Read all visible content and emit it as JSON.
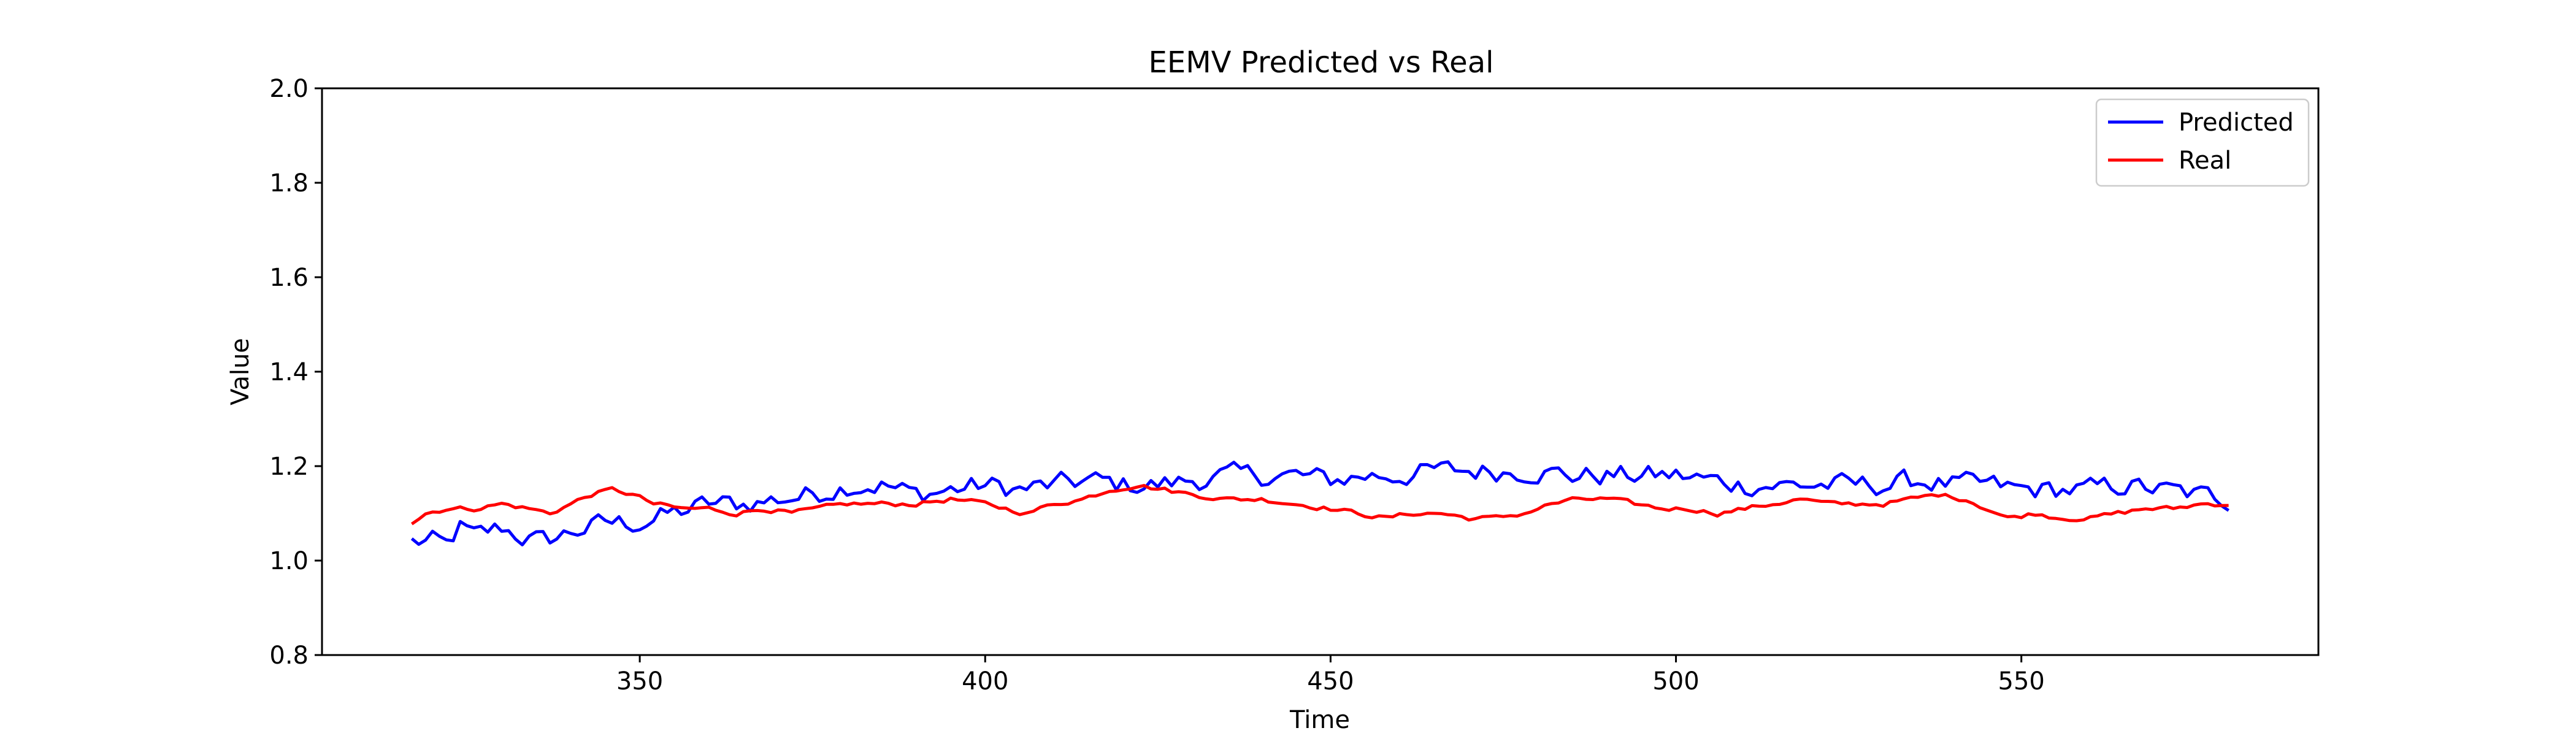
{
  "chart_data": {
    "type": "line",
    "title": "EEMV Predicted vs Real",
    "xlabel": "Time",
    "ylabel": "Value",
    "xlim": [
      304,
      593
    ],
    "ylim": [
      0.8,
      2.0
    ],
    "x_ticks": [
      350,
      400,
      450,
      500,
      550
    ],
    "x_tick_labels": [
      "350",
      "400",
      "450",
      "500",
      "550"
    ],
    "y_ticks": [
      0.8,
      1.0,
      1.2,
      1.4,
      1.6,
      1.8,
      2.0
    ],
    "y_tick_labels": [
      "0.8",
      "1.0",
      "1.2",
      "1.4",
      "1.6",
      "1.8",
      "2.0"
    ],
    "grid": false,
    "legend_position": "top-right",
    "x_start": 317,
    "x_end": 580,
    "series": [
      {
        "name": "Predicted",
        "color": "#0000ff",
        "keypoints": [
          [
            317,
            1.04
          ],
          [
            320,
            1.04
          ],
          [
            322,
            1.03
          ],
          [
            324,
            1.07
          ],
          [
            326,
            1.05
          ],
          [
            330,
            1.07
          ],
          [
            333,
            1.05
          ],
          [
            336,
            1.04
          ],
          [
            340,
            1.06
          ],
          [
            345,
            1.08
          ],
          [
            350,
            1.08
          ],
          [
            355,
            1.1
          ],
          [
            360,
            1.12
          ],
          [
            365,
            1.12
          ],
          [
            370,
            1.13
          ],
          [
            375,
            1.14
          ],
          [
            380,
            1.16
          ],
          [
            385,
            1.16
          ],
          [
            390,
            1.14
          ],
          [
            395,
            1.15
          ],
          [
            400,
            1.16
          ],
          [
            405,
            1.15
          ],
          [
            410,
            1.16
          ],
          [
            415,
            1.17
          ],
          [
            420,
            1.16
          ],
          [
            425,
            1.16
          ],
          [
            430,
            1.17
          ],
          [
            435,
            1.18
          ],
          [
            440,
            1.18
          ],
          [
            445,
            1.18
          ],
          [
            450,
            1.17
          ],
          [
            455,
            1.18
          ],
          [
            460,
            1.18
          ],
          [
            465,
            1.19
          ],
          [
            470,
            1.19
          ],
          [
            475,
            1.19
          ],
          [
            480,
            1.19
          ],
          [
            485,
            1.18
          ],
          [
            490,
            1.18
          ],
          [
            495,
            1.18
          ],
          [
            500,
            1.18
          ],
          [
            505,
            1.17
          ],
          [
            510,
            1.16
          ],
          [
            515,
            1.16
          ],
          [
            520,
            1.16
          ],
          [
            525,
            1.16
          ],
          [
            530,
            1.16
          ],
          [
            535,
            1.17
          ],
          [
            540,
            1.16
          ],
          [
            545,
            1.16
          ],
          [
            550,
            1.15
          ],
          [
            555,
            1.15
          ],
          [
            560,
            1.15
          ],
          [
            565,
            1.16
          ],
          [
            570,
            1.15
          ],
          [
            575,
            1.14
          ],
          [
            580,
            1.13
          ]
        ],
        "noise": 0.035
      },
      {
        "name": "Real",
        "color": "#ff0000",
        "keypoints": [
          [
            317,
            1.08
          ],
          [
            319,
            1.1
          ],
          [
            322,
            1.11
          ],
          [
            326,
            1.11
          ],
          [
            330,
            1.12
          ],
          [
            334,
            1.11
          ],
          [
            337,
            1.1
          ],
          [
            340,
            1.12
          ],
          [
            343,
            1.14
          ],
          [
            346,
            1.15
          ],
          [
            349,
            1.14
          ],
          [
            352,
            1.12
          ],
          [
            356,
            1.11
          ],
          [
            360,
            1.11
          ],
          [
            364,
            1.1
          ],
          [
            368,
            1.11
          ],
          [
            372,
            1.1
          ],
          [
            376,
            1.11
          ],
          [
            380,
            1.12
          ],
          [
            385,
            1.12
          ],
          [
            390,
            1.12
          ],
          [
            395,
            1.13
          ],
          [
            400,
            1.12
          ],
          [
            403,
            1.11
          ],
          [
            406,
            1.1
          ],
          [
            410,
            1.12
          ],
          [
            414,
            1.13
          ],
          [
            418,
            1.15
          ],
          [
            422,
            1.16
          ],
          [
            426,
            1.15
          ],
          [
            430,
            1.14
          ],
          [
            435,
            1.13
          ],
          [
            440,
            1.13
          ],
          [
            445,
            1.12
          ],
          [
            450,
            1.11
          ],
          [
            454,
            1.1
          ],
          [
            458,
            1.09
          ],
          [
            462,
            1.1
          ],
          [
            466,
            1.1
          ],
          [
            470,
            1.09
          ],
          [
            474,
            1.09
          ],
          [
            478,
            1.1
          ],
          [
            482,
            1.12
          ],
          [
            486,
            1.13
          ],
          [
            490,
            1.13
          ],
          [
            494,
            1.12
          ],
          [
            498,
            1.11
          ],
          [
            502,
            1.11
          ],
          [
            506,
            1.1
          ],
          [
            510,
            1.11
          ],
          [
            514,
            1.12
          ],
          [
            518,
            1.13
          ],
          [
            522,
            1.12
          ],
          [
            526,
            1.12
          ],
          [
            530,
            1.12
          ],
          [
            534,
            1.13
          ],
          [
            538,
            1.14
          ],
          [
            542,
            1.13
          ],
          [
            545,
            1.11
          ],
          [
            548,
            1.09
          ],
          [
            552,
            1.1
          ],
          [
            556,
            1.09
          ],
          [
            560,
            1.09
          ],
          [
            564,
            1.1
          ],
          [
            568,
            1.11
          ],
          [
            572,
            1.11
          ],
          [
            576,
            1.12
          ],
          [
            580,
            1.12
          ]
        ],
        "noise": 0.008
      }
    ]
  }
}
